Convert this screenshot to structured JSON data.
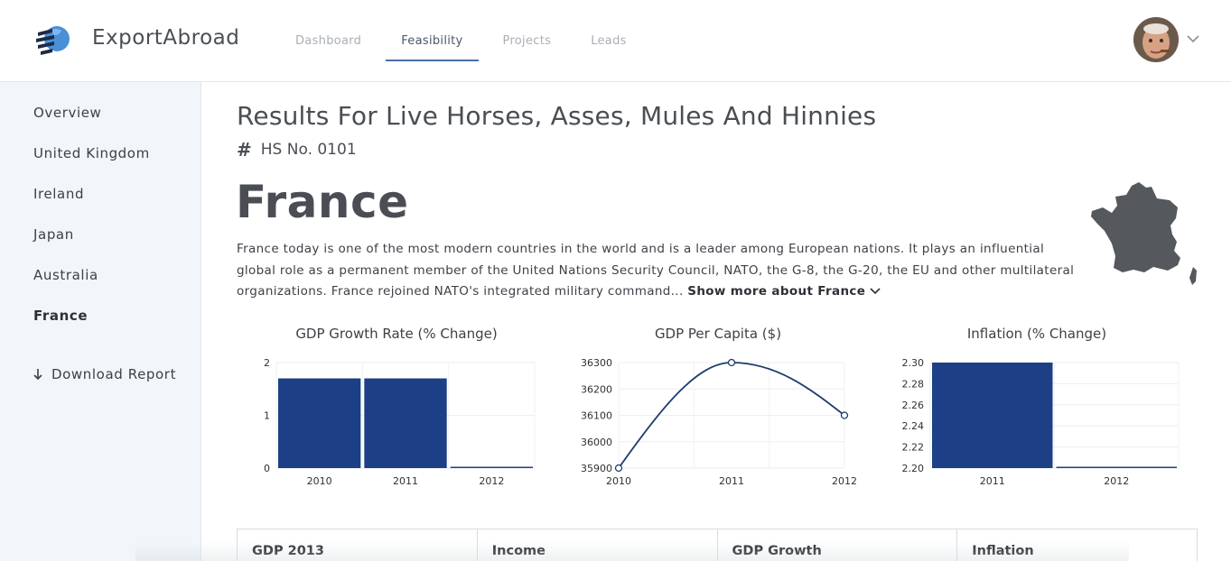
{
  "app": {
    "name": "ExportAbroad"
  },
  "nav": {
    "items": [
      {
        "label": "Dashboard",
        "active": false
      },
      {
        "label": "Feasibility",
        "active": true
      },
      {
        "label": "Projects",
        "active": false
      },
      {
        "label": "Leads",
        "active": false
      }
    ]
  },
  "sidebar": {
    "items": [
      {
        "label": "Overview",
        "active": false
      },
      {
        "label": "United Kingdom",
        "active": false
      },
      {
        "label": "Ireland",
        "active": false
      },
      {
        "label": "Japan",
        "active": false
      },
      {
        "label": "Australia",
        "active": false
      },
      {
        "label": "France",
        "active": true
      }
    ],
    "download_label": "Download Report"
  },
  "main": {
    "title": "Results For Live Horses, Asses, Mules And Hinnies",
    "hs_number": "HS No. 0101",
    "country": "France",
    "description": "France today is one of the most modern countries in the world and is a leader among European nations. It plays an influential global role as a permanent member of the United Nations Security Council, NATO, the G-8, the G-20, the EU and other multilateral organizations. France rejoined NATO's integrated military command...",
    "show_more": "Show more about France",
    "table_headers": [
      "GDP 2013",
      "Income",
      "GDP Growth",
      "Inflation"
    ]
  },
  "colors": {
    "bar": "#1c3f85",
    "line": "#1b3d6e",
    "map": "#55585c",
    "accent": "#4a6fa5"
  },
  "chart_data": [
    {
      "type": "bar",
      "title": "GDP Growth Rate (% Change)",
      "categories": [
        "2010",
        "2011",
        "2012"
      ],
      "values": [
        1.7,
        1.7,
        0
      ],
      "ylim": [
        0,
        2
      ],
      "yticks": [
        "0",
        "1",
        "2"
      ],
      "grid": true
    },
    {
      "type": "line",
      "title": "GDP Per Capita ($)",
      "categories": [
        "2010",
        "2011",
        "2012"
      ],
      "values": [
        35900,
        36300,
        36100
      ],
      "ylim": [
        35900,
        36300
      ],
      "yticks": [
        "35900",
        "36000",
        "36100",
        "36200",
        "36300"
      ],
      "grid": true
    },
    {
      "type": "bar",
      "title": "Inflation (% Change)",
      "categories": [
        "2011",
        "2012"
      ],
      "values": [
        2.3,
        2.2
      ],
      "ylim": [
        2.2,
        2.3
      ],
      "yticks": [
        "2.20",
        "2.22",
        "2.24",
        "2.26",
        "2.28",
        "2.30"
      ],
      "grid": true
    }
  ]
}
